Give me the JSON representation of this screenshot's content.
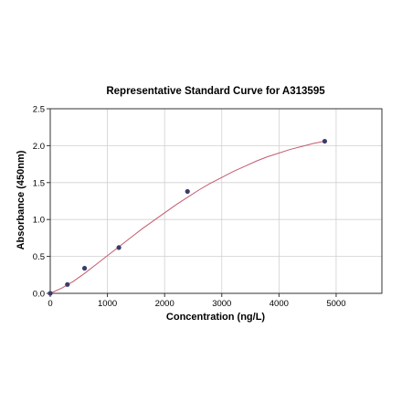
{
  "chart_data": {
    "type": "scatter",
    "title": "Representative Standard Curve for A313595",
    "xlabel": "Concentration (ng/L)",
    "ylabel": "Absorbance (450nm)",
    "xlim": [
      0,
      5800
    ],
    "ylim": [
      0,
      2.5
    ],
    "xticks": [
      0,
      1000,
      2000,
      3000,
      4000,
      5000
    ],
    "yticks": [
      0.0,
      0.5,
      1.0,
      1.5,
      2.0,
      2.5
    ],
    "xtick_labels": [
      "0",
      "1000",
      "2000",
      "3000",
      "4000",
      "5000"
    ],
    "ytick_labels": [
      "0.0",
      "0.5",
      "1.0",
      "1.5",
      "2.0",
      "2.5"
    ],
    "grid": true,
    "points": {
      "x": [
        0,
        300,
        600,
        1200,
        2400,
        4800
      ],
      "y": [
        0.0,
        0.12,
        0.34,
        0.62,
        1.38,
        2.06
      ]
    },
    "fit_curve": {
      "x": [
        0,
        200,
        400,
        600,
        800,
        1000,
        1200,
        1400,
        1600,
        1800,
        2000,
        2200,
        2400,
        2600,
        2800,
        3000,
        3200,
        3400,
        3600,
        3800,
        4000,
        4200,
        4400,
        4600,
        4800
      ],
      "y": [
        0.0,
        0.07,
        0.16,
        0.27,
        0.39,
        0.51,
        0.63,
        0.75,
        0.87,
        0.98,
        1.09,
        1.2,
        1.3,
        1.4,
        1.49,
        1.57,
        1.65,
        1.72,
        1.79,
        1.85,
        1.9,
        1.95,
        1.99,
        2.03,
        2.06
      ]
    },
    "colors": {
      "point": "#3b3b6b",
      "curve": "#c45a6e",
      "grid": "#d0d0d0",
      "axis": "#333333"
    }
  }
}
